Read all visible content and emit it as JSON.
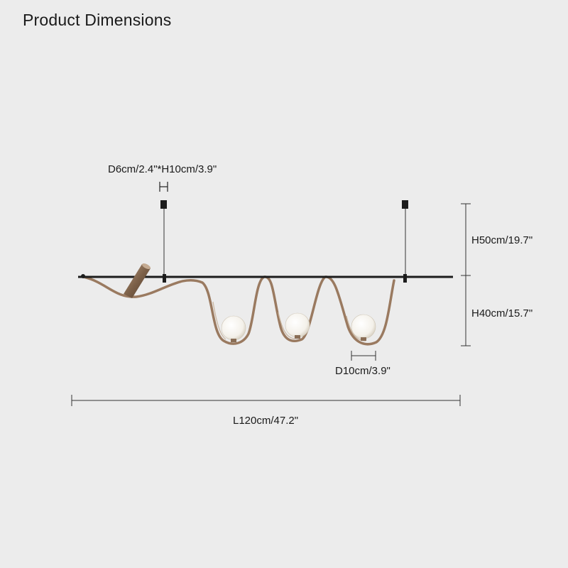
{
  "title": "Product Dimensions",
  "dimensions": {
    "canopy": "D6cm/2.4\"*H10cm/3.9\"",
    "suspension_height": "H50cm/19.7\"",
    "fixture_height": "H40cm/15.7\"",
    "globe_diameter": "D10cm/3.9\"",
    "length": "L120cm/47.2\""
  },
  "colors": {
    "background": "#ececec",
    "bar": "#1c1c1c",
    "ribbon": "#9a7a60",
    "globe": "#ffffff",
    "dimension_line": "#333333"
  }
}
